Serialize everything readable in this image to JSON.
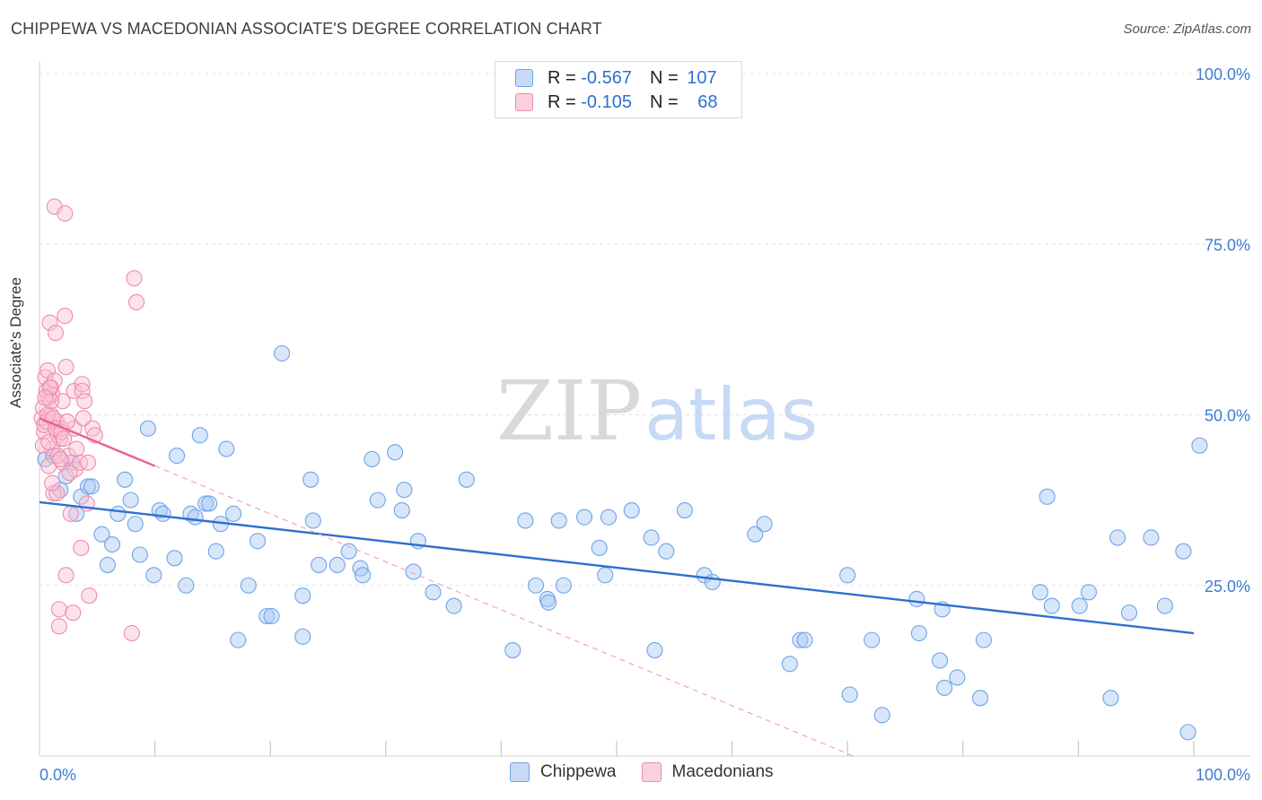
{
  "title": "CHIPPEWA VS MACEDONIAN ASSOCIATE'S DEGREE CORRELATION CHART",
  "source": "Source: ZipAtlas.com",
  "watermark": {
    "zip": "ZIP",
    "atlas": "atlas"
  },
  "legend": {
    "rows": [
      {
        "r_label": "R = ",
        "r_value": "-0.567",
        "n_label": "N = ",
        "n_value": "107",
        "color": "#a9c8f5"
      },
      {
        "r_label": "R = ",
        "r_value": "-0.105",
        "n_label": "N = ",
        "n_value": "68",
        "color": "#f9c0d2"
      }
    ]
  },
  "bottom_legend": [
    {
      "label": "Chippewa",
      "color": "#a9c8f5"
    },
    {
      "label": "Macedonians",
      "color": "#f9c0d2"
    }
  ],
  "chart_data": {
    "type": "scatter",
    "title": "CHIPPEWA VS MACEDONIAN ASSOCIATE'S DEGREE CORRELATION CHART",
    "xlabel": "",
    "ylabel": "Associate's Degree",
    "xlim": [
      0,
      100
    ],
    "ylim": [
      0,
      100
    ],
    "x_tick_labels": [
      "0.0%",
      "100.0%"
    ],
    "y_ticks": [
      25,
      50,
      75,
      100
    ],
    "y_tick_labels": [
      "25.0%",
      "50.0%",
      "75.0%",
      "100.0%"
    ],
    "grid": true,
    "series": [
      {
        "name": "Chippewa",
        "color": "#6fa3e8",
        "trend": {
          "x": [
            0,
            100
          ],
          "y": [
            37.2,
            18.0
          ],
          "color": "#2f6fcf"
        },
        "points": [
          [
            0.5,
            43.5
          ],
          [
            1.2,
            44.0
          ],
          [
            1.8,
            39.0
          ],
          [
            2.3,
            41.0
          ],
          [
            2.8,
            43.0
          ],
          [
            3.2,
            35.5
          ],
          [
            3.6,
            38.0
          ],
          [
            4.2,
            39.5
          ],
          [
            4.5,
            39.5
          ],
          [
            5.4,
            32.5
          ],
          [
            5.9,
            28.0
          ],
          [
            6.3,
            31.0
          ],
          [
            6.8,
            35.5
          ],
          [
            7.4,
            40.5
          ],
          [
            7.9,
            37.5
          ],
          [
            8.3,
            34.0
          ],
          [
            8.7,
            29.5
          ],
          [
            9.4,
            48.0
          ],
          [
            9.9,
            26.5
          ],
          [
            10.4,
            36.0
          ],
          [
            10.7,
            35.5
          ],
          [
            11.7,
            29.0
          ],
          [
            11.9,
            44.0
          ],
          [
            12.7,
            25.0
          ],
          [
            13.1,
            35.5
          ],
          [
            13.5,
            35.0
          ],
          [
            13.9,
            47.0
          ],
          [
            14.4,
            37.0
          ],
          [
            14.7,
            37.0
          ],
          [
            15.3,
            30.0
          ],
          [
            15.7,
            34.0
          ],
          [
            16.2,
            45.0
          ],
          [
            16.8,
            35.5
          ],
          [
            17.2,
            17.0
          ],
          [
            18.1,
            25.0
          ],
          [
            18.9,
            31.5
          ],
          [
            19.7,
            20.5
          ],
          [
            20.1,
            20.5
          ],
          [
            21.0,
            59.0
          ],
          [
            22.8,
            23.5
          ],
          [
            22.8,
            17.5
          ],
          [
            23.5,
            40.5
          ],
          [
            23.7,
            34.5
          ],
          [
            24.2,
            28.0
          ],
          [
            25.8,
            28.0
          ],
          [
            26.8,
            30.0
          ],
          [
            27.8,
            27.5
          ],
          [
            28.0,
            26.5
          ],
          [
            28.8,
            43.5
          ],
          [
            29.3,
            37.5
          ],
          [
            30.8,
            44.5
          ],
          [
            31.4,
            36.0
          ],
          [
            31.6,
            39.0
          ],
          [
            32.4,
            27.0
          ],
          [
            32.8,
            31.5
          ],
          [
            34.1,
            24.0
          ],
          [
            35.9,
            22.0
          ],
          [
            37.0,
            40.5
          ],
          [
            41.0,
            15.5
          ],
          [
            42.1,
            34.5
          ],
          [
            43.0,
            25.0
          ],
          [
            44.0,
            23.0
          ],
          [
            44.1,
            22.5
          ],
          [
            45.0,
            34.5
          ],
          [
            45.4,
            25.0
          ],
          [
            47.2,
            35.0
          ],
          [
            48.5,
            30.5
          ],
          [
            49.0,
            26.5
          ],
          [
            49.3,
            35.0
          ],
          [
            51.3,
            36.0
          ],
          [
            53.0,
            32.0
          ],
          [
            53.3,
            15.5
          ],
          [
            54.3,
            30.0
          ],
          [
            55.9,
            36.0
          ],
          [
            57.6,
            26.5
          ],
          [
            58.3,
            25.5
          ],
          [
            62.0,
            32.5
          ],
          [
            62.8,
            34.0
          ],
          [
            65.0,
            13.5
          ],
          [
            65.9,
            17.0
          ],
          [
            66.3,
            17.0
          ],
          [
            70.0,
            26.5
          ],
          [
            70.2,
            9.0
          ],
          [
            72.1,
            17.0
          ],
          [
            73.0,
            6.0
          ],
          [
            76.0,
            23.0
          ],
          [
            76.2,
            18.0
          ],
          [
            78.0,
            14.0
          ],
          [
            78.2,
            21.5
          ],
          [
            78.4,
            10.0
          ],
          [
            79.5,
            11.5
          ],
          [
            81.5,
            8.5
          ],
          [
            81.8,
            17.0
          ],
          [
            86.7,
            24.0
          ],
          [
            87.3,
            38.0
          ],
          [
            87.7,
            22.0
          ],
          [
            90.1,
            22.0
          ],
          [
            90.9,
            24.0
          ],
          [
            92.8,
            8.5
          ],
          [
            93.4,
            32.0
          ],
          [
            94.4,
            21.0
          ],
          [
            96.3,
            32.0
          ],
          [
            97.5,
            22.0
          ],
          [
            99.1,
            30.0
          ],
          [
            99.5,
            3.5
          ],
          [
            100.5,
            45.5
          ]
        ]
      },
      {
        "name": "Macedonians",
        "color": "#f08bab",
        "trend": {
          "x": [
            0,
            10.0
          ],
          "y": [
            49.5,
            42.5
          ],
          "color": "#e8618d"
        },
        "trend_extension": {
          "x": [
            10.0,
            70.5
          ],
          "y": [
            42.5,
            0
          ],
          "color": "#f2a3bd"
        },
        "points": [
          [
            0.2,
            49.5
          ],
          [
            0.3,
            51.0
          ],
          [
            0.4,
            47.5
          ],
          [
            0.5,
            55.5
          ],
          [
            0.6,
            53.5
          ],
          [
            0.7,
            56.5
          ],
          [
            0.8,
            52.5
          ],
          [
            0.8,
            42.5
          ],
          [
            0.9,
            63.5
          ],
          [
            1.0,
            50.0
          ],
          [
            1.0,
            54.0
          ],
          [
            1.1,
            53.0
          ],
          [
            1.1,
            45.0
          ],
          [
            1.2,
            38.5
          ],
          [
            1.3,
            80.5
          ],
          [
            1.3,
            55.0
          ],
          [
            1.4,
            62.0
          ],
          [
            1.5,
            49.0
          ],
          [
            1.6,
            47.0
          ],
          [
            1.7,
            21.5
          ],
          [
            1.7,
            19.0
          ],
          [
            1.8,
            46.5
          ],
          [
            1.9,
            48.0
          ],
          [
            2.0,
            52.0
          ],
          [
            2.0,
            43.0
          ],
          [
            2.2,
            64.5
          ],
          [
            2.2,
            79.5
          ],
          [
            2.3,
            57.0
          ],
          [
            2.3,
            26.5
          ],
          [
            2.5,
            44.0
          ],
          [
            2.7,
            35.5
          ],
          [
            2.9,
            21.0
          ],
          [
            3.0,
            53.5
          ],
          [
            3.0,
            48.0
          ],
          [
            3.1,
            42.0
          ],
          [
            3.2,
            45.0
          ],
          [
            3.5,
            43.0
          ],
          [
            3.6,
            30.5
          ],
          [
            3.7,
            54.5
          ],
          [
            3.7,
            53.5
          ],
          [
            3.8,
            49.5
          ],
          [
            3.9,
            52.0
          ],
          [
            4.1,
            37.0
          ],
          [
            4.2,
            43.0
          ],
          [
            4.3,
            23.5
          ],
          [
            4.6,
            48.0
          ],
          [
            4.8,
            47.0
          ],
          [
            8.0,
            18.0
          ],
          [
            8.2,
            70.0
          ],
          [
            8.4,
            66.5
          ],
          [
            0.3,
            45.5
          ],
          [
            0.4,
            48.5
          ],
          [
            0.6,
            49.0
          ],
          [
            0.7,
            50.0
          ],
          [
            0.9,
            54.0
          ],
          [
            1.0,
            52.0
          ],
          [
            1.2,
            49.5
          ],
          [
            1.4,
            48.0
          ],
          [
            1.5,
            38.5
          ],
          [
            1.6,
            44.0
          ],
          [
            1.8,
            43.5
          ],
          [
            1.9,
            47.5
          ],
          [
            2.1,
            46.5
          ],
          [
            2.4,
            49.0
          ],
          [
            2.6,
            41.5
          ],
          [
            0.5,
            52.5
          ],
          [
            0.8,
            46.0
          ],
          [
            1.1,
            40.0
          ]
        ]
      }
    ]
  }
}
